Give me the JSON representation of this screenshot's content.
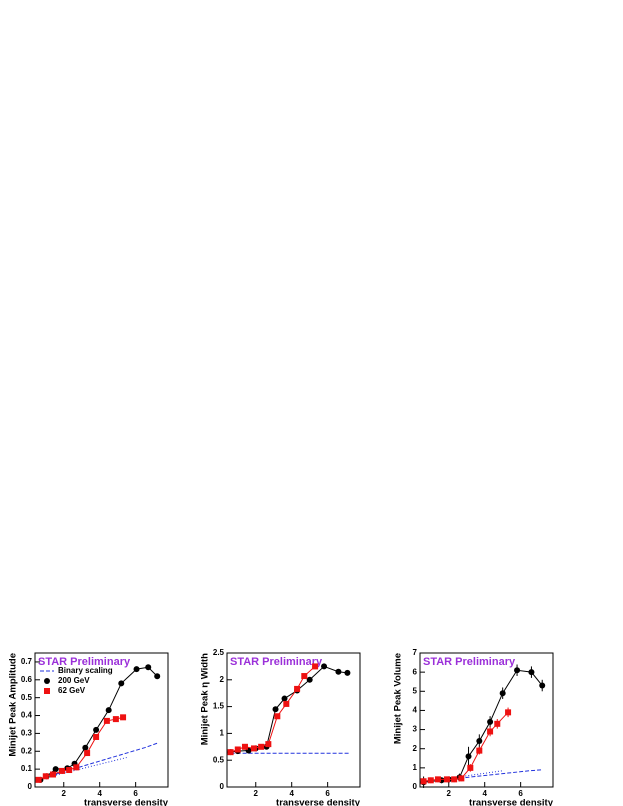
{
  "chart_data": [
    {
      "type": "line",
      "title": "STAR Preliminary",
      "x_label": "transverse density",
      "y_label": "Minijet Peak Amplitude",
      "xlim": [
        0.4,
        7.8
      ],
      "xticks": [
        2,
        4,
        6
      ],
      "ylim": [
        0,
        0.75
      ],
      "yticks": [
        0,
        0.1,
        0.2,
        0.3,
        0.4,
        0.5,
        0.6,
        0.7
      ],
      "legend": "top-left",
      "series": [
        {
          "name": "Binary scaling",
          "color": "#2233dd",
          "style": "dashed",
          "x": [
            0.6,
            1.5,
            2.5,
            3.5,
            4.5,
            5.5,
            6.5,
            7.2
          ],
          "values": [
            0.04,
            0.07,
            0.1,
            0.13,
            0.16,
            0.19,
            0.22,
            0.245
          ]
        },
        {
          "color": "#2233dd",
          "style": "dotted",
          "x": [
            0.6,
            1.5,
            2.5,
            3.5,
            4.5,
            5.5
          ],
          "values": [
            0.04,
            0.065,
            0.09,
            0.115,
            0.14,
            0.165
          ]
        },
        {
          "name": "200 GeV",
          "color": "#000000",
          "marker": "circle",
          "x": [
            0.7,
            1.05,
            1.55,
            2.2,
            2.6,
            3.2,
            3.8,
            4.5,
            5.2,
            6.05,
            6.7,
            7.2
          ],
          "values": [
            0.04,
            0.06,
            0.1,
            0.105,
            0.13,
            0.22,
            0.32,
            0.43,
            0.58,
            0.66,
            0.67,
            0.62
          ]
        },
        {
          "name": "62 GeV",
          "color": "#ee1111",
          "marker": "square",
          "x": [
            0.6,
            1.0,
            1.4,
            1.9,
            2.3,
            2.7,
            3.3,
            3.8,
            4.4,
            4.9,
            5.3
          ],
          "values": [
            0.04,
            0.06,
            0.07,
            0.09,
            0.095,
            0.11,
            0.19,
            0.28,
            0.37,
            0.38,
            0.39
          ]
        }
      ]
    },
    {
      "type": "line",
      "title": "STAR Preliminary",
      "x_label": "transverse density",
      "y_label": "Minijet Peak η Width",
      "xlim": [
        0.4,
        7.8
      ],
      "xticks": [
        2,
        4,
        6
      ],
      "ylim": [
        0,
        2.5
      ],
      "yticks": [
        0,
        0.5,
        1,
        1.5,
        2,
        2.5
      ],
      "series": [
        {
          "color": "#2233dd",
          "style": "dashed",
          "x": [
            0.6,
            7.2
          ],
          "values": [
            0.63,
            0.63
          ]
        },
        {
          "color": "#000000",
          "marker": "circle",
          "x": [
            0.6,
            1.0,
            1.6,
            2.0,
            2.6,
            3.1,
            3.6,
            4.3,
            5.0,
            5.8,
            6.6,
            7.1
          ],
          "values": [
            0.65,
            0.67,
            0.68,
            0.72,
            0.75,
            1.45,
            1.65,
            1.8,
            2.0,
            2.25,
            2.15,
            2.13
          ]
        },
        {
          "color": "#ee1111",
          "marker": "square",
          "x": [
            0.6,
            1.0,
            1.4,
            1.9,
            2.3,
            2.7,
            3.2,
            3.7,
            4.3,
            4.7,
            5.3
          ],
          "values": [
            0.65,
            0.7,
            0.75,
            0.72,
            0.75,
            0.8,
            1.32,
            1.55,
            1.83,
            2.07,
            2.25
          ]
        }
      ]
    },
    {
      "type": "line",
      "title": "STAR Preliminary",
      "x_label": "transverse density",
      "y_label": "Minijet Peak Volume",
      "xlim": [
        0.4,
        7.8
      ],
      "xticks": [
        2,
        4,
        6
      ],
      "ylim": [
        0,
        7
      ],
      "yticks": [
        0,
        1,
        2,
        3,
        4,
        5,
        6,
        7
      ],
      "series": [
        {
          "color": "#2233dd",
          "style": "dashed",
          "x": [
            0.6,
            2.0,
            3.5,
            5.0,
            6.5,
            7.2
          ],
          "values": [
            0.3,
            0.4,
            0.55,
            0.7,
            0.85,
            0.9
          ]
        },
        {
          "color": "#2233dd",
          "style": "dotted",
          "x": [
            0.6,
            2.0,
            3.5,
            5.0
          ],
          "values": [
            0.3,
            0.45,
            0.65,
            0.85
          ]
        },
        {
          "color": "#000000",
          "marker": "circle",
          "x": [
            0.6,
            1.6,
            2.0,
            2.6,
            3.1,
            3.7,
            4.3,
            5.0,
            5.8,
            6.6,
            7.2
          ],
          "values": [
            0.25,
            0.35,
            0.4,
            0.5,
            1.6,
            2.4,
            3.4,
            4.9,
            6.1,
            6.0,
            5.3
          ],
          "errors": [
            0.3,
            0.15,
            0.15,
            0.2,
            0.5,
            0.35,
            0.3,
            0.3,
            0.3,
            0.3,
            0.3
          ]
        },
        {
          "color": "#ee1111",
          "marker": "square",
          "x": [
            0.6,
            1.0,
            1.4,
            1.9,
            2.3,
            2.7,
            3.2,
            3.7,
            4.3,
            4.7,
            5.3
          ],
          "values": [
            0.3,
            0.35,
            0.4,
            0.4,
            0.4,
            0.45,
            1.0,
            1.9,
            2.9,
            3.3,
            3.9
          ],
          "errors": [
            0.15,
            0.15,
            0.15,
            0.15,
            0.15,
            0.15,
            0.2,
            0.2,
            0.25,
            0.25,
            0.25
          ]
        }
      ]
    }
  ]
}
